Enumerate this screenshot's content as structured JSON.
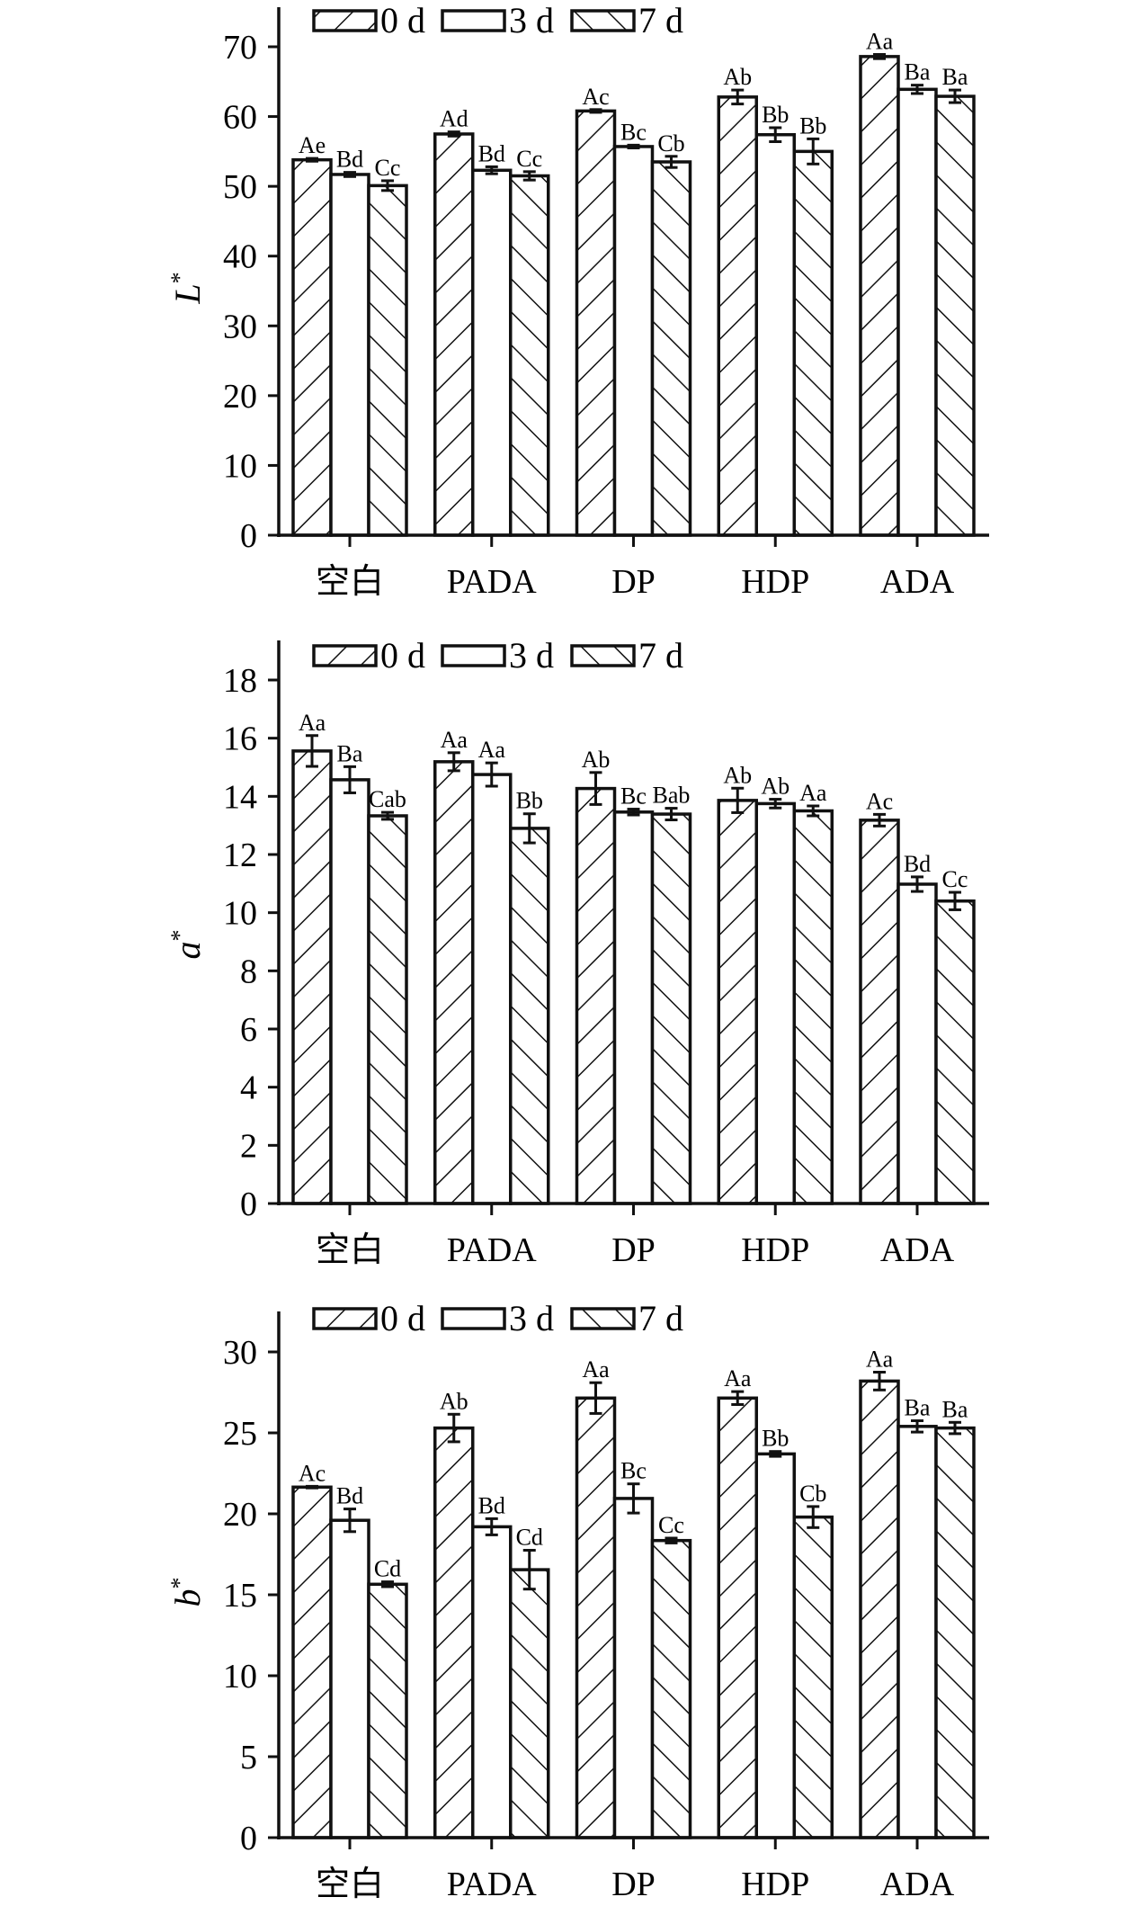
{
  "legend": [
    "0 d",
    "3 d",
    "7 d"
  ],
  "chart_data": [
    {
      "type": "bar",
      "ylabel": "L",
      "ylabel_sup": "*",
      "categories": [
        "空白",
        "PADA",
        "DP",
        "HDP",
        "ADA"
      ],
      "ylim": [
        0,
        70
      ],
      "yticks": [
        "0",
        "10",
        "20",
        "30",
        "40",
        "50",
        "60",
        "70"
      ],
      "ytick_values": [
        0,
        10,
        20,
        30,
        40,
        50,
        60,
        70
      ],
      "series": [
        {
          "name": "0 d",
          "values": [
            53.8,
            57.5,
            60.8,
            62.8,
            68.6
          ],
          "errors": [
            0.2,
            0.3,
            0.2,
            1.0,
            0.3
          ],
          "labels": [
            "Ae",
            "Ad",
            "Ac",
            "Ab",
            "Aa"
          ]
        },
        {
          "name": "3 d",
          "values": [
            51.7,
            52.3,
            55.7,
            57.4,
            63.9
          ],
          "errors": [
            0.3,
            0.5,
            0.2,
            1.0,
            0.6
          ],
          "labels": [
            "Bd",
            "Bd",
            "Bc",
            "Bb",
            "Ba"
          ]
        },
        {
          "name": "7 d",
          "values": [
            50.1,
            51.5,
            53.5,
            55.0,
            62.9
          ],
          "errors": [
            0.7,
            0.6,
            0.8,
            1.8,
            0.9
          ],
          "labels": [
            "Cc",
            "Cc",
            "Cb",
            "Bb",
            "Ba"
          ]
        }
      ]
    },
    {
      "type": "bar",
      "ylabel": "a",
      "ylabel_sup": "*",
      "categories": [
        "空白",
        "PADA",
        "DP",
        "HDP",
        "ADA"
      ],
      "ylim": [
        0,
        18
      ],
      "yticks": [
        "0",
        "2",
        "4",
        "6",
        "8",
        "10",
        "12",
        "14",
        "16",
        "18"
      ],
      "ytick_values": [
        0,
        2,
        4,
        6,
        8,
        10,
        12,
        14,
        16,
        18
      ],
      "series": [
        {
          "name": "0 d",
          "values": [
            15.56,
            15.19,
            14.27,
            13.86,
            13.18
          ],
          "errors": [
            0.53,
            0.31,
            0.55,
            0.42,
            0.2
          ],
          "labels": [
            "Aa",
            "Aa",
            "Ab",
            "Ab",
            "Ac"
          ]
        },
        {
          "name": "3 d",
          "values": [
            14.57,
            14.75,
            13.46,
            13.75,
            10.98
          ],
          "errors": [
            0.45,
            0.4,
            0.1,
            0.15,
            0.25
          ],
          "labels": [
            "Ba",
            "Aa",
            "Bc",
            "Ab",
            "Bd"
          ]
        },
        {
          "name": "7 d",
          "values": [
            13.33,
            12.9,
            13.39,
            13.5,
            10.4
          ],
          "errors": [
            0.12,
            0.5,
            0.2,
            0.17,
            0.3
          ],
          "labels": [
            "Cab",
            "Bb",
            "Bab",
            "Aa",
            "Cc"
          ]
        }
      ]
    },
    {
      "type": "bar",
      "ylabel": "b",
      "ylabel_sup": "*",
      "categories": [
        "空白",
        "PADA",
        "DP",
        "HDP",
        "ADA"
      ],
      "ylim": [
        0,
        30
      ],
      "yticks": [
        "0",
        "5",
        "10",
        "15",
        "20",
        "25",
        "30"
      ],
      "ytick_values": [
        0,
        5,
        10,
        15,
        20,
        25,
        30
      ],
      "series": [
        {
          "name": "0 d",
          "values": [
            21.65,
            25.3,
            27.15,
            27.15,
            28.2
          ],
          "errors": [
            0.05,
            0.85,
            0.95,
            0.4,
            0.55
          ],
          "labels": [
            "Ac",
            "Ab",
            "Aa",
            "Aa",
            "Aa"
          ]
        },
        {
          "name": "3 d",
          "values": [
            19.6,
            19.2,
            20.95,
            23.7,
            25.4
          ],
          "errors": [
            0.7,
            0.5,
            0.9,
            0.15,
            0.35
          ],
          "labels": [
            "Bd",
            "Bd",
            "Bc",
            "Bb",
            "Ba"
          ]
        },
        {
          "name": "7 d",
          "values": [
            15.65,
            16.55,
            18.35,
            19.8,
            25.3
          ],
          "errors": [
            0.15,
            1.2,
            0.15,
            0.65,
            0.35
          ],
          "labels": [
            "Cd",
            "Cd",
            "Cc",
            "Cb",
            "Ba"
          ]
        }
      ]
    }
  ]
}
